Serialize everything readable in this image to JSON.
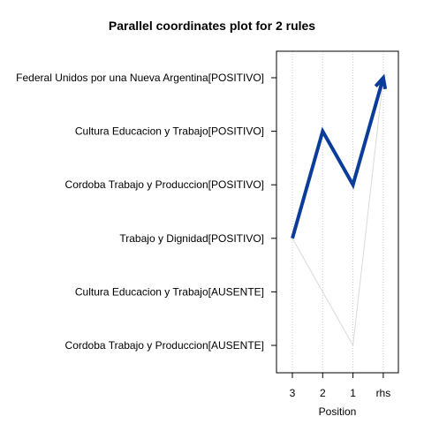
{
  "chart_data": {
    "type": "line",
    "title": "Parallel coordinates plot for 2 rules",
    "xlabel": "Position",
    "x_categories": [
      "3",
      "2",
      "1",
      "rhs"
    ],
    "y_categories": [
      "Federal Unidos por una Nueva Argentina[POSITIVO]",
      "Cultura Educacion y Trabajo[POSITIVO]",
      "Cordoba Trabajo y Produccion[POSITIVO]",
      "Trabajo y Dignidad[POSITIVO]",
      "Cultura Educacion y Trabajo[AUSENTE]",
      "Cordoba Trabajo y Produccion[AUSENTE]"
    ],
    "grid": true,
    "series": [
      {
        "points": [
          {
            "x": "3",
            "y": "Trabajo y Dignidad[POSITIVO]"
          },
          {
            "x": "2",
            "y": "Cultura Educacion y Trabajo[POSITIVO]"
          },
          {
            "x": "1",
            "y": "Cordoba Trabajo y Produccion[POSITIVO]"
          },
          {
            "x": "rhs",
            "y": "Federal Unidos por una Nueva Argentina[POSITIVO]"
          }
        ],
        "color": "#0b3c99",
        "emphasis": "strong"
      },
      {
        "points": [
          {
            "x": "3",
            "y": "Trabajo y Dignidad[POSITIVO]"
          },
          {
            "x": "2",
            "y": "Cultura Educacion y Trabajo[AUSENTE]"
          },
          {
            "x": "1",
            "y": "Cordoba Trabajo y Produccion[AUSENTE]"
          },
          {
            "x": "rhs",
            "y": "Federal Unidos por una Nueva Argentina[POSITIVO]"
          }
        ],
        "color": "#d9d9d9",
        "emphasis": "faint"
      }
    ]
  },
  "colors": {
    "grid": "#cccccc",
    "axis": "#000000"
  }
}
